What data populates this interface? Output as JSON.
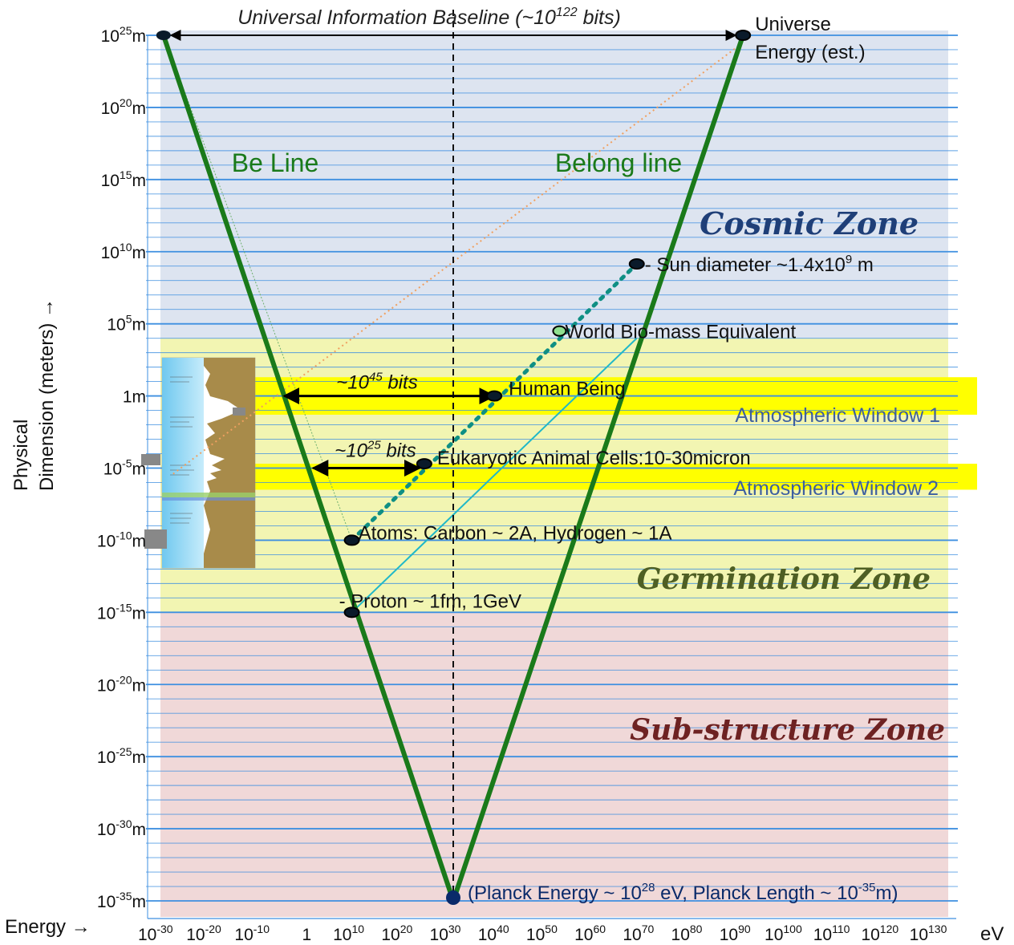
{
  "chart_data": {
    "type": "diagram",
    "title": "Universal Information Baseline (~10^122 bits)",
    "title_parts": {
      "main": "Universal Information Baseline (~10",
      "sup": "122",
      "tail": " bits)"
    },
    "ylabel_line1": "Physical",
    "ylabel_line2": "Dimension (meters) →",
    "xlabel": "Energy →",
    "x_unit": "eV",
    "x_axis": {
      "scale": "log",
      "range_exp": [
        -33,
        133
      ],
      "ticks": [
        {
          "base": "10",
          "exp": "-30"
        },
        {
          "base": "10",
          "exp": "-20"
        },
        {
          "base": "10",
          "exp": "-10"
        },
        {
          "base": "1",
          "exp": ""
        },
        {
          "base": "10",
          "exp": "10"
        },
        {
          "base": "10",
          "exp": "20"
        },
        {
          "base": "10",
          "exp": "30"
        },
        {
          "base": "10",
          "exp": "40"
        },
        {
          "base": "10",
          "exp": "50"
        },
        {
          "base": "10",
          "exp": "60"
        },
        {
          "base": "10",
          "exp": "70"
        },
        {
          "base": "10",
          "exp": "80"
        },
        {
          "base": "10",
          "exp": "90"
        },
        {
          "base": "10",
          "exp": "100"
        },
        {
          "base": "10",
          "exp": "110"
        },
        {
          "base": "10",
          "exp": "120"
        },
        {
          "base": "10",
          "exp": "130"
        }
      ]
    },
    "y_axis": {
      "scale": "log",
      "range_exp": [
        -35,
        25
      ],
      "ticks": [
        {
          "base": "10",
          "exp": "25",
          "unit": "m"
        },
        {
          "base": "10",
          "exp": "20",
          "unit": "m"
        },
        {
          "base": "10",
          "exp": "15",
          "unit": "m"
        },
        {
          "base": "10",
          "exp": "10",
          "unit": "m"
        },
        {
          "base": "10",
          "exp": "5",
          "unit": "m"
        },
        {
          "base": "1",
          "exp": "",
          "unit": "m"
        },
        {
          "base": "10",
          "exp": "-5",
          "unit": "m"
        },
        {
          "base": "10",
          "exp": "-10",
          "unit": "m"
        },
        {
          "base": "10",
          "exp": "-15",
          "unit": "m"
        },
        {
          "base": "10",
          "exp": "-20",
          "unit": "m"
        },
        {
          "base": "10",
          "exp": "-25",
          "unit": "m"
        },
        {
          "base": "10",
          "exp": "-30",
          "unit": "m"
        },
        {
          "base": "10",
          "exp": "-35",
          "unit": "m"
        }
      ]
    },
    "grid": true,
    "zones": [
      {
        "name": "Cosmic Zone",
        "y_from": 4,
        "y_to": 25,
        "color": "#dde4f0",
        "label_color": "#1f3f78"
      },
      {
        "name": "Germination Zone",
        "y_from": -15,
        "y_to": 4,
        "color": "#f2f5b2",
        "label_color": "#4f5f24"
      },
      {
        "name": "Sub-structure Zone",
        "y_from": -35,
        "y_to": -15,
        "color": "#f0d8d8",
        "label_color": "#6e2222"
      }
    ],
    "windows": [
      {
        "name": "Atmospheric Window 1",
        "y_from": -1.3,
        "y_to": 1.3,
        "color": "#ffff00",
        "label_color": "#3d5fa0"
      },
      {
        "name": "Atmospheric Window 2",
        "y_from": -6.5,
        "y_to": -4.7,
        "color": "#ffff00",
        "label_color": "#3d5fa0"
      }
    ],
    "lines": [
      {
        "name": "Be Line",
        "from": [
          -30,
          25
        ],
        "to": [
          30,
          -35
        ],
        "color": "#1a7a1a"
      },
      {
        "name": "Belong line",
        "from": [
          30,
          -35
        ],
        "to": [
          90,
          25
        ],
        "color": "#1a7a1a"
      }
    ],
    "planck_x": 30,
    "points": [
      {
        "label": "Universe",
        "label2": "Energy (est.)",
        "x": 90,
        "y": 25
      },
      {
        "label": "- Sun diameter ~1.4x10",
        "sup": "9",
        "tail": " m",
        "x": 68,
        "y": 9.15
      },
      {
        "label": "World Bio-mass Equivalent",
        "x": 52,
        "y": 4.5
      },
      {
        "label": "Human Being",
        "x": 38.5,
        "y": 0
      },
      {
        "label": "Eukaryotic Animal Cells:10-30micron",
        "x": 24,
        "y": -4.7
      },
      {
        "label": "Atoms: Carbon ~ 2A, Hydrogen ~ 1A",
        "x": 9,
        "y": -10
      },
      {
        "label": "- Proton ~ 1fm, 1GeV",
        "x": 9,
        "y": -15
      },
      {
        "label": "(Planck Energy ~ 10",
        "sup": "28",
        "tail": " eV, Planck Length ~ 10",
        "sup2": "-35",
        "tail2": "m)",
        "x": 30,
        "y": -35
      }
    ],
    "spans": [
      {
        "label_pre": "~10",
        "sup": "45",
        "label_post": " bits",
        "x_from": -5,
        "x_to": 38.5,
        "y": 0
      },
      {
        "label_pre": "~10",
        "sup": "25",
        "label_post": " bits",
        "x_from": 1,
        "x_to": 23,
        "y": -5
      }
    ],
    "colors": {
      "green_line": "#1a7a1a",
      "dotted_teal": "#0f8f84",
      "cyan_line": "#20b8c8",
      "orange_dotted": "#f0a060",
      "grid_blue": "#3e8fe0"
    }
  }
}
